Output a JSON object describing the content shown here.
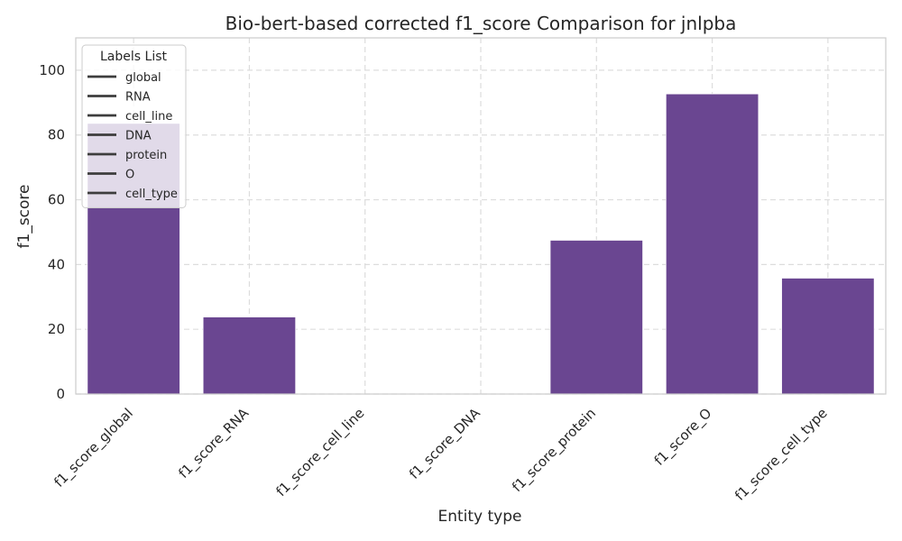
{
  "chart_data": {
    "type": "bar",
    "title": "Bio-bert-based corrected f1_score Comparison for jnlpba",
    "xlabel": "Entity type",
    "ylabel": "f1_score",
    "categories": [
      "f1_score_global",
      "f1_score_RNA",
      "f1_score_cell_line",
      "f1_score_DNA",
      "f1_score_protein",
      "f1_score_O",
      "f1_score_cell_type"
    ],
    "values": [
      83.6,
      23.8,
      0,
      0,
      47.5,
      92.7,
      35.8
    ],
    "ylim": [
      0,
      110
    ],
    "yticks": [
      0,
      20,
      40,
      60,
      80,
      100
    ],
    "grid": true,
    "bar_color": "#6a4691",
    "legend": {
      "title": "Labels List",
      "placement": "top-left",
      "entries": [
        "global",
        "RNA",
        "cell_line",
        "DNA",
        "protein",
        "O",
        "cell_type"
      ]
    }
  }
}
